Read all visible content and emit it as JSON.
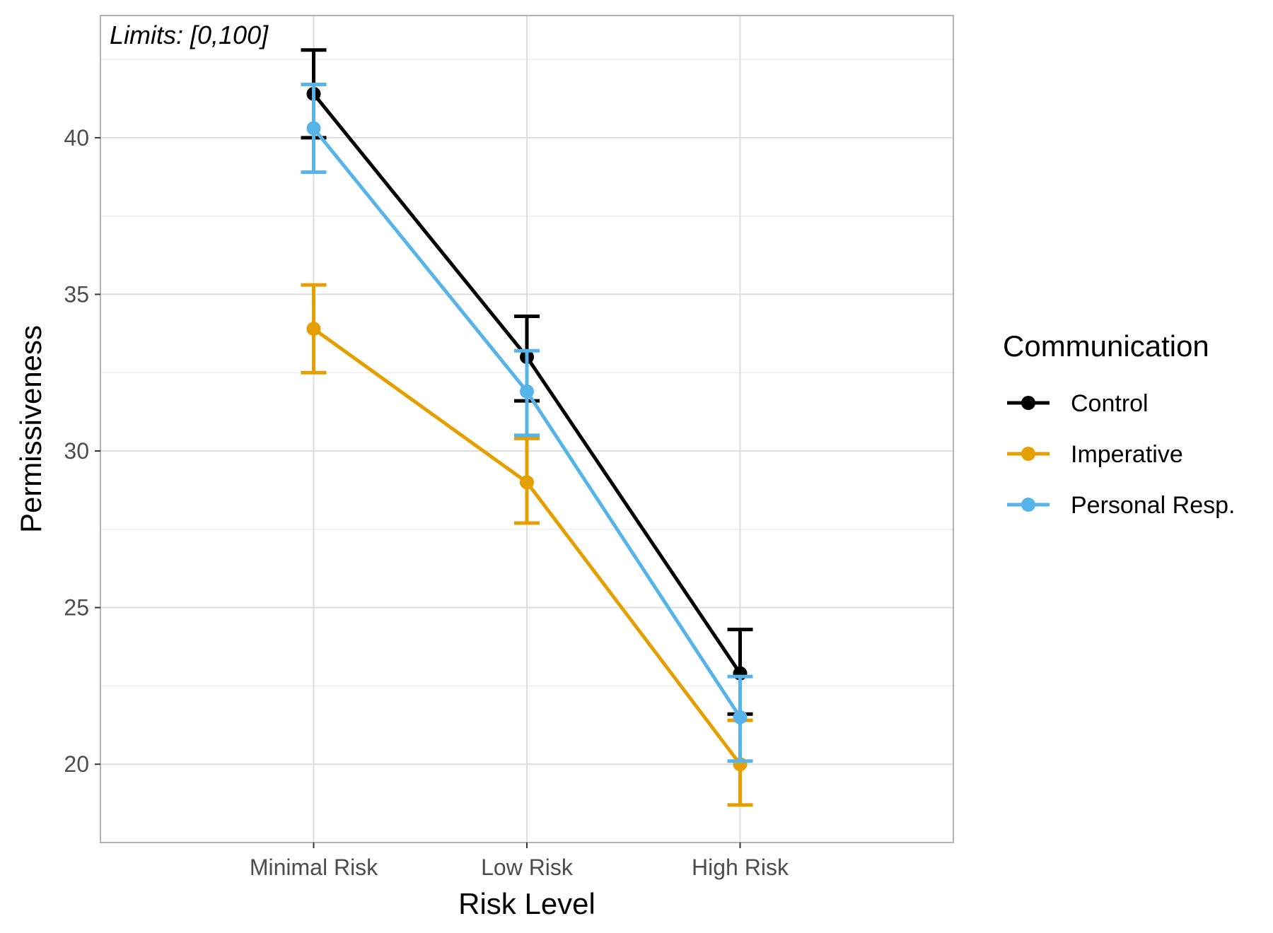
{
  "chart_data": {
    "type": "line",
    "xlabel": "Risk Level",
    "ylabel": "Permissiveness",
    "categories": [
      "Minimal Risk",
      "Low Risk",
      "High Risk"
    ],
    "ylim": [
      17.5,
      43.9
    ],
    "yticks": [
      20,
      25,
      30,
      35,
      40
    ],
    "grid": true,
    "annotation": "Limits: [0,100]",
    "legend": {
      "title": "Communication",
      "position": "right"
    },
    "series": [
      {
        "name": "Control",
        "color": "#000000",
        "values": [
          41.4,
          33.0,
          22.9
        ],
        "lower": [
          40.0,
          31.6,
          21.6
        ],
        "upper": [
          42.8,
          34.3,
          24.3
        ]
      },
      {
        "name": "Imperative",
        "color": "#E69F00",
        "values": [
          33.9,
          29.0,
          20.0
        ],
        "lower": [
          32.5,
          27.7,
          18.7
        ],
        "upper": [
          35.3,
          30.4,
          21.4
        ]
      },
      {
        "name": "Personal Resp.",
        "color": "#56B4E9",
        "values": [
          40.3,
          31.9,
          21.5
        ],
        "lower": [
          38.9,
          30.5,
          20.1
        ],
        "upper": [
          41.7,
          33.2,
          22.8
        ]
      }
    ]
  }
}
